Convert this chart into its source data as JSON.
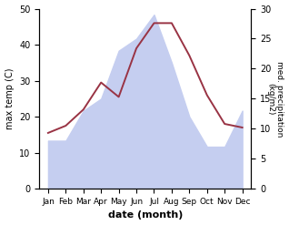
{
  "months": [
    "Jan",
    "Feb",
    "Mar",
    "Apr",
    "May",
    "Jun",
    "Jul",
    "Aug",
    "Sep",
    "Oct",
    "Nov",
    "Dec"
  ],
  "temp": [
    15.5,
    17.5,
    22,
    29.5,
    25.5,
    39,
    46,
    46,
    37,
    26,
    18,
    17
  ],
  "precip": [
    8,
    8,
    13,
    15,
    23,
    25,
    29,
    21,
    12,
    7,
    7,
    13
  ],
  "temp_color": "#993344",
  "precip_fill_color": "#c5cef0",
  "ylabel_left": "max temp (C)",
  "ylabel_right": "med. precipitation\n(kg/m2)",
  "xlabel": "date (month)",
  "ylim_left": [
    0,
    50
  ],
  "ylim_right": [
    0,
    30
  ],
  "left_yticks": [
    0,
    10,
    20,
    30,
    40,
    50
  ],
  "right_yticks": [
    0,
    5,
    10,
    15,
    20,
    25,
    30
  ],
  "bg_color": "#ffffff"
}
